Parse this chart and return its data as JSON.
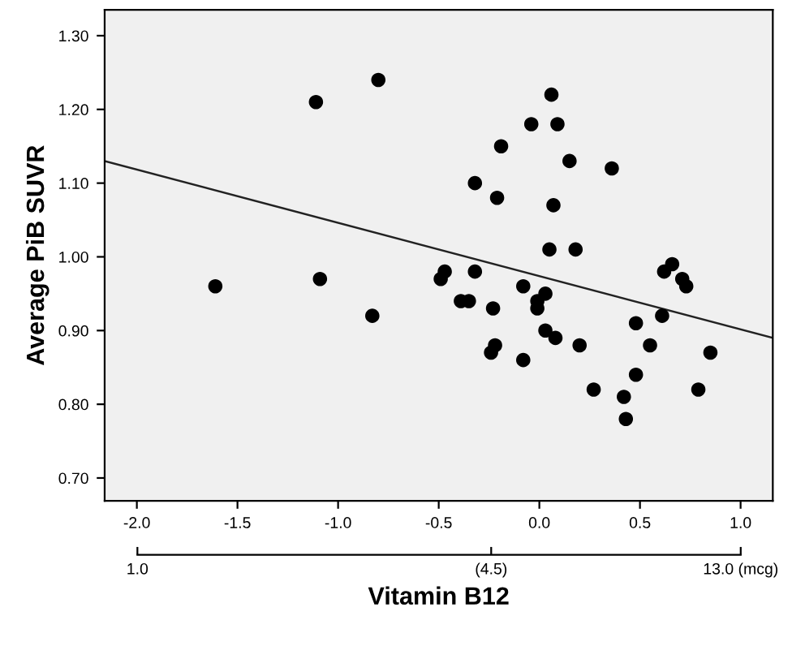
{
  "chart_data": {
    "type": "scatter",
    "xlabel": "Vitamin B12",
    "ylabel": "Average PiB SUVR",
    "x": [
      -0.8,
      -1.11,
      0.06,
      -0.04,
      0.09,
      -0.19,
      0.15,
      0.36,
      -0.32,
      -0.21,
      0.07,
      0.05,
      0.18,
      0.62,
      0.66,
      0.71,
      0.73,
      -1.61,
      -1.09,
      -0.49,
      -0.47,
      -0.32,
      -0.08,
      0.03,
      -0.01,
      -0.01,
      -0.39,
      -0.35,
      -0.23,
      -0.83,
      0.03,
      0.08,
      0.48,
      0.61,
      -0.22,
      -0.24,
      -0.08,
      0.2,
      0.55,
      0.85,
      0.27,
      0.48,
      0.42,
      0.79,
      0.43
    ],
    "series": [
      {
        "color": "#000000",
        "marker": "circle",
        "values": [
          1.24,
          1.21,
          1.22,
          1.18,
          1.18,
          1.15,
          1.13,
          1.12,
          1.1,
          1.08,
          1.07,
          1.01,
          1.01,
          0.98,
          0.99,
          0.97,
          0.96,
          0.96,
          0.97,
          0.97,
          0.98,
          0.98,
          0.96,
          0.95,
          0.93,
          0.94,
          0.94,
          0.94,
          0.93,
          0.92,
          0.9,
          0.89,
          0.91,
          0.92,
          0.88,
          0.87,
          0.86,
          0.88,
          0.88,
          0.87,
          0.82,
          0.84,
          0.81,
          0.82,
          0.78
        ]
      },
      {
        "type": "line",
        "color": "#222222",
        "marker": "none",
        "x": [
          -2.16,
          1.16
        ],
        "values": [
          1.13,
          0.89
        ]
      }
    ],
    "xlim": [
      -2.16,
      1.16
    ],
    "ylim": [
      0.669,
      1.335
    ],
    "xticks": [
      {
        "value": -2.0,
        "label": "-2.0"
      },
      {
        "value": -1.5,
        "label": "-1.5"
      },
      {
        "value": -1.0,
        "label": "-1.0"
      },
      {
        "value": -0.5,
        "label": "-0.5"
      },
      {
        "value": 0.0,
        "label": "0.0"
      },
      {
        "value": 0.5,
        "label": "0.5"
      },
      {
        "value": 1.0,
        "label": "1.0"
      }
    ],
    "yticks": [
      {
        "value": 0.7,
        "label": "0.70"
      },
      {
        "value": 0.8,
        "label": "0.80"
      },
      {
        "value": 0.9,
        "label": "0.90"
      },
      {
        "value": 1.0,
        "label": "1.00"
      },
      {
        "value": 1.1,
        "label": "1.10"
      },
      {
        "value": 1.2,
        "label": "1.20"
      },
      {
        "value": 1.3,
        "label": "1.30"
      }
    ],
    "x2lim": [
      0.87,
      14.9
    ],
    "x2ticks": [
      {
        "value": 1.0,
        "label": "1.0"
      },
      {
        "value": 4.5,
        "label": "(4.5)"
      },
      {
        "value": 13.0,
        "label": "13.0 (mcg)"
      }
    ],
    "log": "x2",
    "grid": false
  }
}
